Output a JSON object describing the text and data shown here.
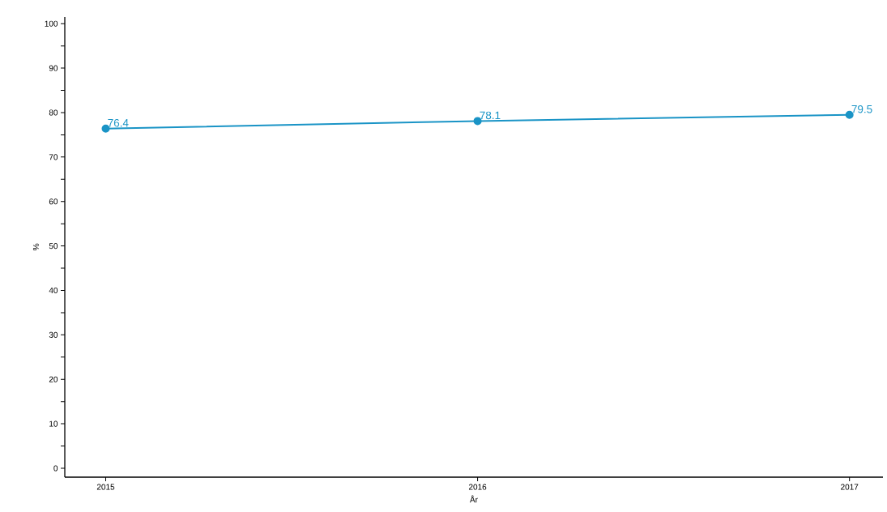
{
  "chart_data": {
    "type": "line",
    "xlabel": "År",
    "ylabel": "%",
    "x": [
      2015,
      2016,
      2017
    ],
    "series": [
      {
        "color": "#1a94c6",
        "values": [
          76.4,
          78.1,
          79.5
        ]
      }
    ],
    "xlim": [
      2014.89,
      2017.09
    ],
    "xticks": [
      2015,
      2016,
      2017
    ],
    "ylim": [
      -2,
      101.5
    ],
    "yticks": [
      0,
      {
        "value": 5,
        "label": null
      },
      10,
      {
        "value": 15,
        "label": null
      },
      20,
      {
        "value": 25,
        "label": null
      },
      30,
      {
        "value": 35,
        "label": null
      },
      40,
      {
        "value": 45,
        "label": null
      },
      50,
      {
        "value": 55,
        "label": null
      },
      60,
      {
        "value": 65,
        "label": null
      },
      70,
      {
        "value": 75,
        "label": null
      },
      80,
      {
        "value": 85,
        "label": null
      },
      90,
      {
        "value": 95,
        "label": null
      },
      100
    ],
    "data_labels": true,
    "marker": "circle",
    "line_style": "solid"
  }
}
